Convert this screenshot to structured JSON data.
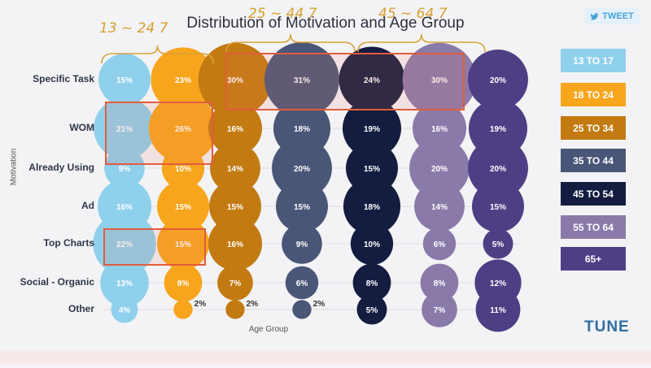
{
  "title": "Distribution of Motivation and Age Group",
  "tweet_label": "TWEET",
  "logo": "TUNE",
  "annotations": {
    "group1": "13 ~ 24 7",
    "group2": "25 ~ 44 7",
    "group3": "45 ~ 64 7"
  },
  "chart_data": {
    "type": "bubble",
    "title": "Distribution of Motivation and Age Group",
    "xlabel": "Age Group",
    "ylabel": "Motivation",
    "categories": [
      "Specific Task",
      "WOM",
      "Already Using",
      "Ad",
      "Top Charts",
      "Social - Organic",
      "Other"
    ],
    "series": [
      {
        "name": "13 TO 17",
        "color": "#8fd0ec",
        "values": [
          15,
          21,
          9,
          16,
          22,
          13,
          4
        ]
      },
      {
        "name": "18 TO 24",
        "color": "#f7a51c",
        "values": [
          23,
          26,
          10,
          15,
          15,
          8,
          2
        ]
      },
      {
        "name": "25 TO 34",
        "color": "#c27a11",
        "values": [
          30,
          16,
          14,
          15,
          16,
          7,
          2
        ]
      },
      {
        "name": "35 TO 44",
        "color": "#4a5677",
        "values": [
          31,
          18,
          20,
          15,
          9,
          6,
          2
        ]
      },
      {
        "name": "45 TO 54",
        "color": "#141d40",
        "values": [
          24,
          19,
          15,
          18,
          10,
          8,
          5
        ]
      },
      {
        "name": "55 TO 64",
        "color": "#8a7aaa",
        "values": [
          30,
          16,
          20,
          14,
          6,
          8,
          7
        ]
      },
      {
        "name": "65+",
        "color": "#4e3f85",
        "values": [
          20,
          19,
          20,
          15,
          5,
          12,
          11
        ]
      }
    ],
    "highlights": [
      {
        "label": "13-24 WOM",
        "series": [
          "13 TO 17",
          "18 TO 24"
        ],
        "category": "WOM"
      },
      {
        "label": "13-24 Top Charts",
        "series": [
          "13 TO 17",
          "18 TO 24"
        ],
        "category": "Top Charts"
      },
      {
        "label": "25-64 Specific Task",
        "series": [
          "25 TO 34",
          "35 TO 44",
          "45 TO 54",
          "55 TO 64"
        ],
        "category": "Specific Task"
      }
    ]
  }
}
